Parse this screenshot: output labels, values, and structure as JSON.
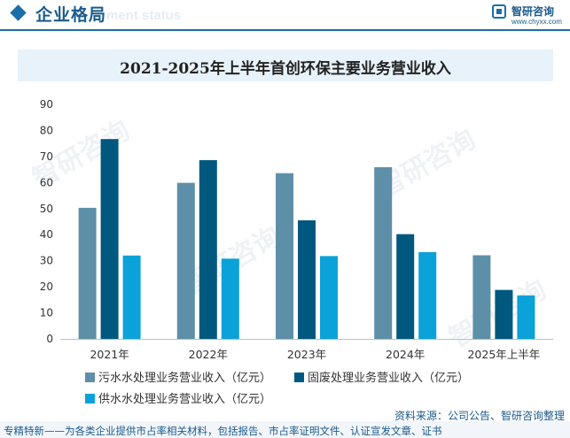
{
  "header": {
    "section_title": "企业格局",
    "section_subtitle": "ment status",
    "logo_name": "智研咨询",
    "logo_url": "www.chyxx.com"
  },
  "watermark_text": "智研咨询",
  "chart_data": {
    "type": "bar",
    "title": "2021-2025年上半年首创环保主要业务营业收入",
    "categories": [
      "2021年",
      "2022年",
      "2023年",
      "2024年",
      "2025年上半年"
    ],
    "series": [
      {
        "name": "污水水处理业务营业收入（亿元）",
        "color": "#5e8fa8",
        "values": [
          50.3,
          59.9,
          63.6,
          65.9,
          32.1
        ]
      },
      {
        "name": "固废处理业务营业收入（亿元）",
        "color": "#00587f",
        "values": [
          76.7,
          68.6,
          45.5,
          40.2,
          18.8
        ]
      },
      {
        "name": "供水水处理业务营业收入（亿元）",
        "color": "#0aa2d8",
        "values": [
          32.0,
          30.8,
          31.8,
          33.3,
          16.7
        ]
      }
    ],
    "ylim": [
      0,
      90
    ],
    "yticks": [
      0,
      10,
      20,
      30,
      40,
      50,
      60,
      70,
      80,
      90
    ],
    "xlabel": "",
    "ylabel": "",
    "legend_position": "bottom",
    "grid": false
  },
  "source": "资料来源：公司公告、智研咨询整理",
  "footer": "专精特新——为各类企业提供市占率相关材料，包括报告、市占率证明文件、认证宣发文章、证书"
}
